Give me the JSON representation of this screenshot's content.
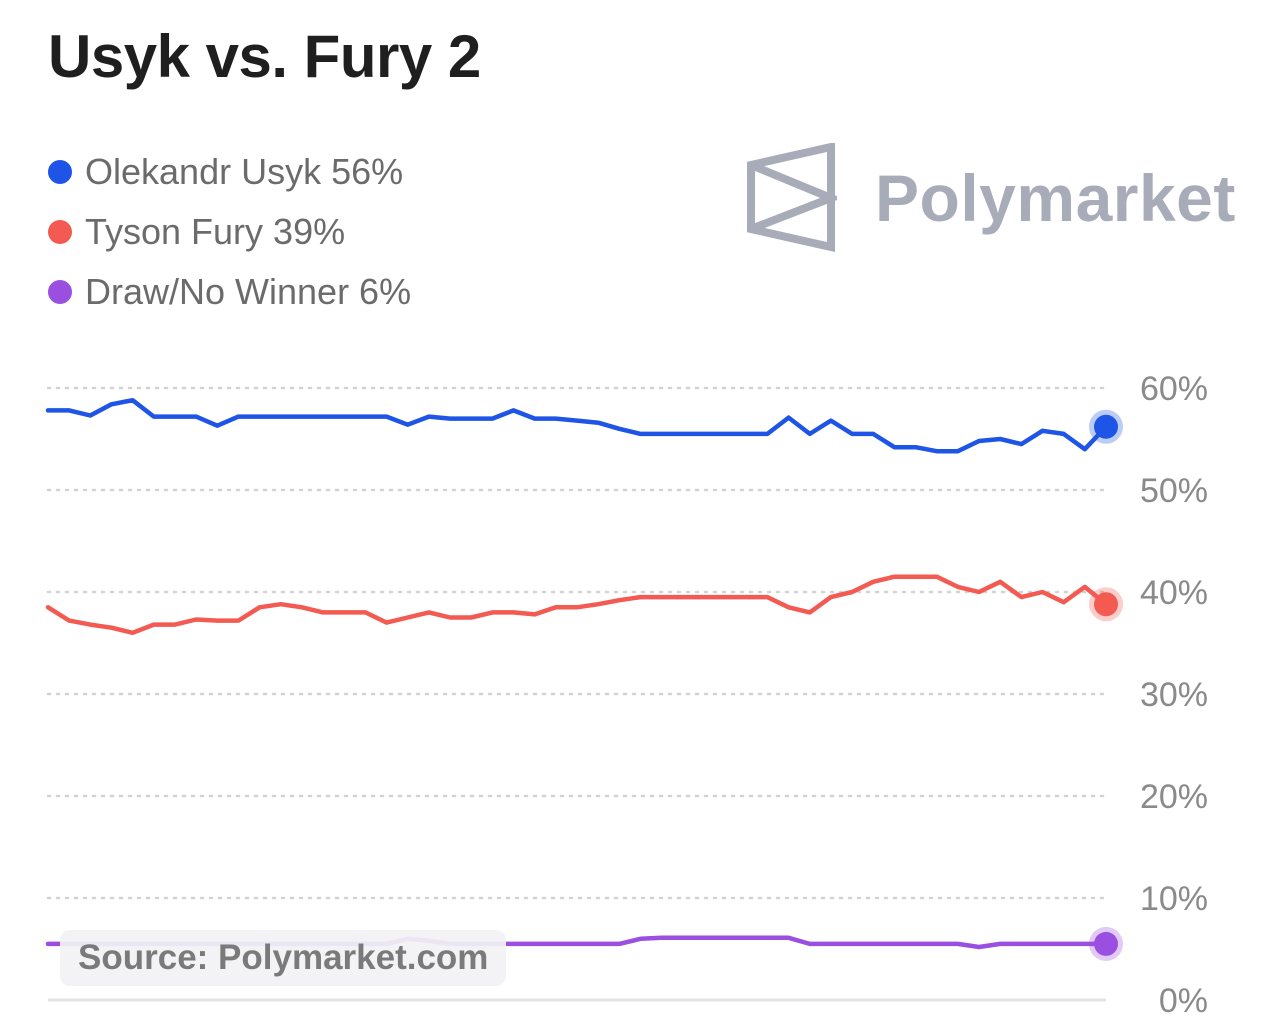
{
  "title": "Usyk vs. Fury 2",
  "brand": {
    "name": "Polymarket",
    "color": "#a8abb8",
    "icon": "polymarket-logo-icon"
  },
  "legend": [
    {
      "label": "Olekandr Usyk 56%",
      "color": "#1f55e6"
    },
    {
      "label": "Tyson Fury 39%",
      "color": "#f25a52"
    },
    {
      "label": "Draw/No Winner 6%",
      "color": "#9a4fe0"
    }
  ],
  "source": "Source: Polymarket.com",
  "chart_data": {
    "type": "line",
    "title": "Usyk vs. Fury 2",
    "xlabel": "",
    "ylabel": "",
    "ylim": [
      0,
      60
    ],
    "yticks": [
      0,
      10,
      20,
      30,
      40,
      50,
      60
    ],
    "ytick_labels": [
      "0%",
      "10%",
      "20%",
      "30%",
      "40%",
      "50%",
      "60%"
    ],
    "grid": "horizontal dotted",
    "axis_side": "right",
    "x": [
      0,
      2,
      4,
      6,
      8,
      10,
      12,
      14,
      16,
      18,
      20,
      22,
      24,
      26,
      28,
      30,
      32,
      34,
      36,
      38,
      40,
      42,
      44,
      46,
      48,
      50,
      52,
      54,
      56,
      58,
      60,
      62,
      64,
      66,
      68,
      70,
      72,
      74,
      76,
      78,
      80,
      82,
      84,
      86,
      88,
      90,
      92,
      94,
      96,
      98,
      100
    ],
    "series": [
      {
        "name": "Olekandr Usyk",
        "color": "#1f55e6",
        "values": [
          57.8,
          57.8,
          57.3,
          58.4,
          58.8,
          57.2,
          57.2,
          57.2,
          56.3,
          57.2,
          57.2,
          57.2,
          57.2,
          57.2,
          57.2,
          57.2,
          57.2,
          56.4,
          57.2,
          57.0,
          57.0,
          57.0,
          57.8,
          57.0,
          57.0,
          56.8,
          56.6,
          56.0,
          55.5,
          55.5,
          55.5,
          55.5,
          55.5,
          55.5,
          55.5,
          57.1,
          55.5,
          56.8,
          55.5,
          55.5,
          54.2,
          54.2,
          53.8,
          53.8,
          54.8,
          55.0,
          54.5,
          55.8,
          55.5,
          54.0,
          56.2
        ]
      },
      {
        "name": "Tyson Fury",
        "color": "#f25a52",
        "values": [
          38.5,
          37.2,
          36.8,
          36.5,
          36.0,
          36.8,
          36.8,
          37.3,
          37.2,
          37.2,
          38.5,
          38.8,
          38.5,
          38.0,
          38.0,
          38.0,
          37.0,
          37.5,
          38.0,
          37.5,
          37.5,
          38.0,
          38.0,
          37.8,
          38.5,
          38.5,
          38.8,
          39.2,
          39.5,
          39.5,
          39.5,
          39.5,
          39.5,
          39.5,
          39.5,
          38.5,
          38.0,
          39.5,
          40.0,
          41.0,
          41.5,
          41.5,
          41.5,
          40.5,
          40.0,
          41.0,
          39.5,
          40.0,
          39.0,
          40.5,
          38.8
        ]
      },
      {
        "name": "Draw/No Winner",
        "color": "#9a4fe0",
        "values": [
          5.5,
          5.5,
          5.5,
          5.5,
          5.5,
          5.5,
          5.5,
          5.5,
          5.5,
          5.5,
          5.5,
          5.5,
          5.5,
          5.5,
          5.5,
          5.5,
          5.5,
          6.0,
          5.8,
          5.5,
          5.5,
          5.5,
          5.5,
          5.5,
          5.5,
          5.5,
          5.5,
          5.5,
          6.0,
          6.1,
          6.1,
          6.1,
          6.1,
          6.1,
          6.1,
          6.1,
          5.5,
          5.5,
          5.5,
          5.5,
          5.5,
          5.5,
          5.5,
          5.5,
          5.2,
          5.5,
          5.5,
          5.5,
          5.5,
          5.5,
          5.5
        ]
      }
    ]
  }
}
